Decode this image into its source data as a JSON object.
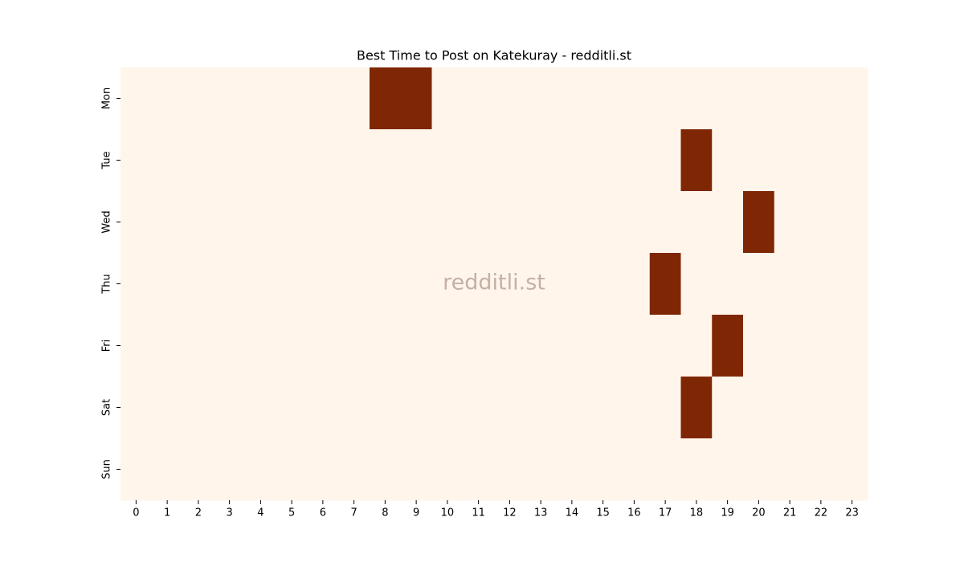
{
  "chart_data": {
    "type": "heatmap",
    "title": "Best Time to Post on Katekuray - redditli.st",
    "watermark": "redditli.st",
    "x_categories": [
      0,
      1,
      2,
      3,
      4,
      5,
      6,
      7,
      8,
      9,
      10,
      11,
      12,
      13,
      14,
      15,
      16,
      17,
      18,
      19,
      20,
      21,
      22,
      23
    ],
    "y_categories": [
      "Mon",
      "Tue",
      "Wed",
      "Thu",
      "Fri",
      "Sat",
      "Sun"
    ],
    "values": [
      [
        0,
        0,
        0,
        0,
        0,
        0,
        0,
        0,
        1,
        1,
        0,
        0,
        0,
        0,
        0,
        0,
        0,
        0,
        0,
        0,
        0,
        0,
        0,
        0
      ],
      [
        0,
        0,
        0,
        0,
        0,
        0,
        0,
        0,
        0,
        0,
        0,
        0,
        0,
        0,
        0,
        0,
        0,
        0,
        1,
        0,
        0,
        0,
        0,
        0
      ],
      [
        0,
        0,
        0,
        0,
        0,
        0,
        0,
        0,
        0,
        0,
        0,
        0,
        0,
        0,
        0,
        0,
        0,
        0,
        0,
        0,
        1,
        0,
        0,
        0
      ],
      [
        0,
        0,
        0,
        0,
        0,
        0,
        0,
        0,
        0,
        0,
        0,
        0,
        0,
        0,
        0,
        0,
        0,
        1,
        0,
        0,
        0,
        0,
        0,
        0
      ],
      [
        0,
        0,
        0,
        0,
        0,
        0,
        0,
        0,
        0,
        0,
        0,
        0,
        0,
        0,
        0,
        0,
        0,
        0,
        0,
        1,
        0,
        0,
        0,
        0
      ],
      [
        0,
        0,
        0,
        0,
        0,
        0,
        0,
        0,
        0,
        0,
        0,
        0,
        0,
        0,
        0,
        0,
        0,
        0,
        1,
        0,
        0,
        0,
        0,
        0
      ],
      [
        0,
        0,
        0,
        0,
        0,
        0,
        0,
        0,
        0,
        0,
        0,
        0,
        0,
        0,
        0,
        0,
        0,
        0,
        0,
        0,
        0,
        0,
        0,
        0
      ]
    ],
    "colors": [
      "#fff5eb",
      "#7f2704"
    ]
  }
}
